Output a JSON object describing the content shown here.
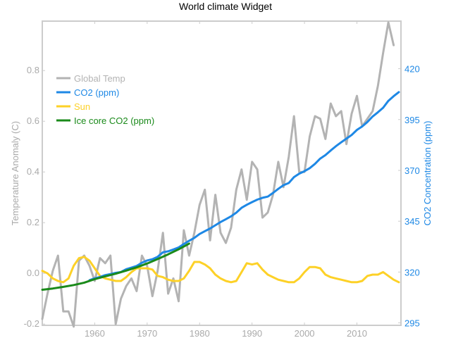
{
  "chart_data": {
    "type": "line",
    "title": "World climate Widget",
    "xlabel": "",
    "ylabel": "Temperature Anomaly (C)",
    "y2label": "CO2 Concentration (ppm)",
    "xlim": [
      1950,
      2018.4
    ],
    "ylim": [
      -0.205,
      0.995
    ],
    "y2lim": [
      293.8,
      443.4
    ],
    "x_ticks": [
      1960,
      1970,
      1980,
      1990,
      2000,
      2010
    ],
    "y_ticks": [
      -0.2,
      0.0,
      0.2,
      0.4,
      0.6,
      0.8
    ],
    "y_tick_labels": [
      "-0.2",
      "0.0",
      "0.2",
      "0.4",
      "0.6",
      "0.8"
    ],
    "y2_ticks": [
      295,
      320,
      345,
      370,
      395,
      420
    ],
    "grid": false,
    "legend_position": "top-left",
    "colors": {
      "global_temp": "#b3b3b3",
      "co2": "#1e88e5",
      "sun": "#fdd127",
      "ice_core": "#1a8a1a",
      "frame": "#cccccc",
      "left_axis_text": "#aaaaaa",
      "right_axis_text": "#1e88e5"
    },
    "series": [
      {
        "name": "Global Temp",
        "axis": "left",
        "x": [
          1950,
          1951,
          1952,
          1953,
          1954,
          1955,
          1956,
          1957,
          1958,
          1959,
          1960,
          1961,
          1962,
          1963,
          1964,
          1965,
          1966,
          1967,
          1968,
          1969,
          1970,
          1971,
          1972,
          1973,
          1974,
          1975,
          1976,
          1977,
          1978,
          1979,
          1980,
          1981,
          1982,
          1983,
          1984,
          1985,
          1986,
          1987,
          1988,
          1989,
          1990,
          1991,
          1992,
          1993,
          1994,
          1995,
          1996,
          1997,
          1998,
          1999,
          2000,
          2001,
          2002,
          2003,
          2004,
          2005,
          2006,
          2007,
          2008,
          2009,
          2010,
          2011,
          2012,
          2013,
          2014,
          2015,
          2016,
          2017
        ],
        "values": [
          -0.18,
          -0.08,
          0.01,
          0.07,
          -0.15,
          -0.15,
          -0.21,
          0.05,
          0.07,
          0.03,
          -0.03,
          0.06,
          0.04,
          0.07,
          -0.2,
          -0.1,
          -0.05,
          -0.02,
          -0.07,
          0.07,
          0.03,
          -0.09,
          0.01,
          0.16,
          -0.08,
          -0.02,
          -0.11,
          0.17,
          0.07,
          0.16,
          0.27,
          0.33,
          0.13,
          0.31,
          0.16,
          0.12,
          0.18,
          0.33,
          0.41,
          0.29,
          0.44,
          0.41,
          0.22,
          0.24,
          0.31,
          0.44,
          0.34,
          0.46,
          0.62,
          0.4,
          0.4,
          0.54,
          0.62,
          0.61,
          0.53,
          0.67,
          0.62,
          0.64,
          0.51,
          0.63,
          0.7,
          0.58,
          0.61,
          0.64,
          0.74,
          0.87,
          0.99,
          0.9
        ]
      },
      {
        "name": "CO2 (ppm)",
        "axis": "right",
        "x": [
          1959,
          1960,
          1961,
          1962,
          1963,
          1964,
          1965,
          1966,
          1967,
          1968,
          1969,
          1970,
          1971,
          1972,
          1973,
          1974,
          1975,
          1976,
          1977,
          1978,
          1979,
          1980,
          1981,
          1982,
          1983,
          1984,
          1985,
          1986,
          1987,
          1988,
          1989,
          1990,
          1991,
          1992,
          1993,
          1994,
          1995,
          1996,
          1997,
          1998,
          1999,
          2000,
          2001,
          2002,
          2003,
          2004,
          2005,
          2006,
          2007,
          2008,
          2009,
          2010,
          2011,
          2012,
          2013,
          2014,
          2015,
          2016,
          2017,
          2018
        ],
        "values": [
          316.0,
          316.9,
          317.6,
          318.5,
          319.0,
          319.6,
          320.0,
          321.4,
          322.2,
          323.0,
          324.6,
          325.7,
          326.3,
          327.5,
          329.7,
          330.2,
          331.1,
          332.1,
          333.8,
          335.4,
          336.8,
          338.7,
          340.1,
          341.4,
          343.0,
          344.6,
          346.0,
          347.4,
          349.2,
          351.6,
          353.1,
          354.4,
          355.6,
          356.5,
          357.1,
          358.9,
          360.9,
          362.7,
          363.8,
          366.7,
          368.4,
          369.6,
          371.1,
          373.2,
          375.8,
          377.5,
          379.8,
          381.9,
          383.8,
          385.6,
          387.4,
          389.9,
          391.6,
          393.8,
          396.5,
          398.6,
          400.8,
          404.2,
          406.5,
          408.5
        ]
      },
      {
        "name": "Sun",
        "axis": "left",
        "x": [
          1950,
          1951,
          1952,
          1953,
          1954,
          1955,
          1956,
          1957,
          1958,
          1959,
          1960,
          1961,
          1962,
          1963,
          1964,
          1965,
          1966,
          1967,
          1968,
          1969,
          1970,
          1971,
          1972,
          1973,
          1974,
          1975,
          1976,
          1977,
          1978,
          1979,
          1980,
          1981,
          1982,
          1983,
          1984,
          1985,
          1986,
          1987,
          1988,
          1989,
          1990,
          1991,
          1992,
          1993,
          1994,
          1995,
          1996,
          1997,
          1998,
          1999,
          2000,
          2001,
          2002,
          2003,
          2004,
          2005,
          2006,
          2007,
          2008,
          2009,
          2010,
          2011,
          2012,
          2013,
          2014,
          2015,
          2016,
          2017,
          2018
        ],
        "values": [
          0.01,
          0.0,
          -0.02,
          -0.03,
          -0.035,
          -0.02,
          0.03,
          0.06,
          0.065,
          0.05,
          0.02,
          -0.01,
          -0.02,
          -0.025,
          -0.03,
          -0.03,
          -0.015,
          0.005,
          0.02,
          0.02,
          0.02,
          0.015,
          -0.01,
          -0.015,
          -0.025,
          -0.03,
          -0.03,
          -0.02,
          0.01,
          0.045,
          0.045,
          0.035,
          0.02,
          -0.005,
          -0.02,
          -0.03,
          -0.035,
          -0.03,
          0.005,
          0.04,
          0.035,
          0.04,
          0.015,
          -0.005,
          -0.015,
          -0.025,
          -0.03,
          -0.035,
          -0.035,
          -0.02,
          0.005,
          0.025,
          0.025,
          0.02,
          -0.005,
          -0.015,
          -0.02,
          -0.025,
          -0.03,
          -0.035,
          -0.035,
          -0.03,
          -0.01,
          -0.005,
          -0.005,
          0.005,
          -0.01,
          -0.025,
          -0.035
        ]
      },
      {
        "name": "Ice core CO2 (ppm)",
        "axis": "right",
        "x": [
          1950,
          1952,
          1954,
          1956,
          1958,
          1960,
          1962,
          1964,
          1966,
          1968,
          1970,
          1972,
          1974,
          1976,
          1978
        ],
        "values": [
          311.3,
          311.9,
          312.7,
          313.6,
          314.8,
          316.5,
          317.9,
          319.2,
          320.7,
          322.3,
          324.2,
          326.4,
          328.7,
          331.2,
          334.0
        ]
      }
    ]
  }
}
